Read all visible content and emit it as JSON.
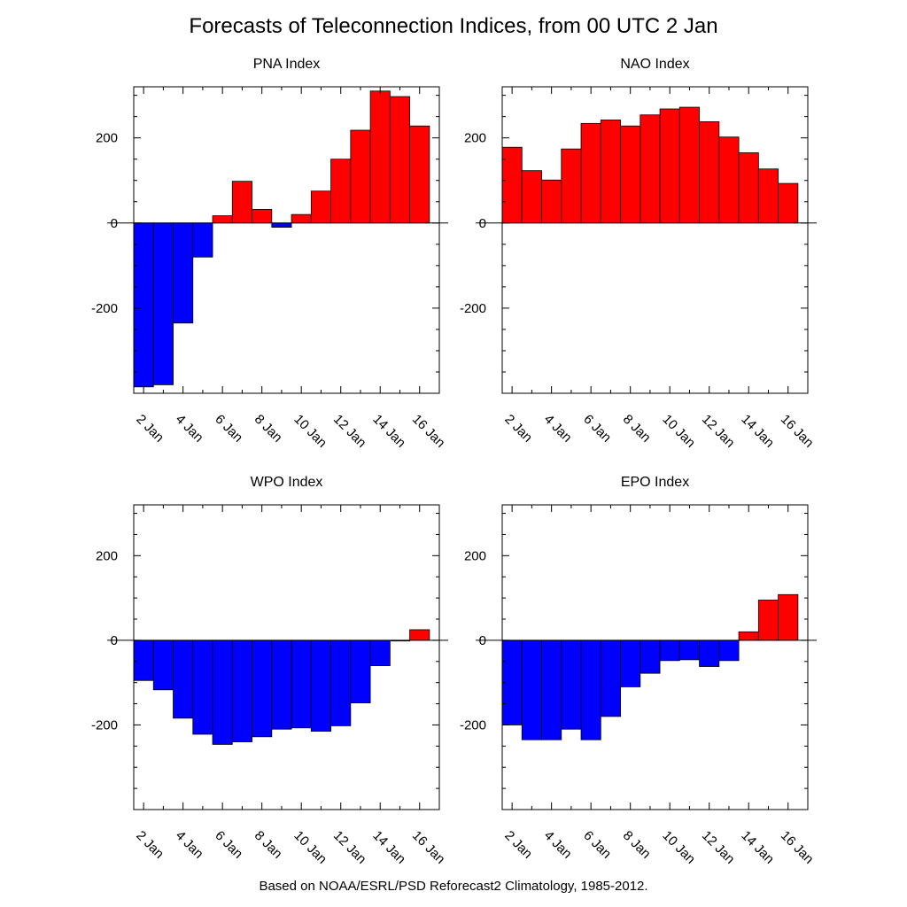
{
  "title": "Forecasts of Teleconnection Indices, from 00 UTC 2 Jan",
  "footer": "Based on NOAA/ESRL/PSD Reforecast2 Climatology, 1985-2012.",
  "colors": {
    "positive": "#ff0000",
    "negative": "#0000ff",
    "axis": "#000000"
  },
  "chart_data": [
    {
      "type": "bar",
      "title": "PNA Index",
      "x": [
        2,
        3,
        4,
        5,
        6,
        7,
        8,
        9,
        10,
        11,
        12,
        13,
        14,
        15,
        16
      ],
      "values": [
        -385,
        -380,
        -235,
        -80,
        17,
        98,
        32,
        -10,
        20,
        75,
        150,
        218,
        310,
        297,
        228
      ],
      "xticks": [
        "2 Jan",
        "4 Jan",
        "6 Jan",
        "8 Jan",
        "10 Jan",
        "12 Jan",
        "14 Jan",
        "16 Jan"
      ],
      "yticks": [
        "200",
        "0",
        "-200"
      ],
      "ylim": [
        -400,
        320
      ],
      "grid": false
    },
    {
      "type": "bar",
      "title": "NAO Index",
      "x": [
        2,
        3,
        4,
        5,
        6,
        7,
        8,
        9,
        10,
        11,
        12,
        13,
        14,
        15,
        16
      ],
      "values": [
        178,
        123,
        101,
        174,
        234,
        242,
        228,
        254,
        268,
        272,
        238,
        202,
        165,
        127,
        93
      ],
      "xticks": [
        "2 Jan",
        "4 Jan",
        "6 Jan",
        "8 Jan",
        "10 Jan",
        "12 Jan",
        "14 Jan",
        "16 Jan"
      ],
      "yticks": [
        "200",
        "0",
        "-200"
      ],
      "ylim": [
        -400,
        320
      ],
      "grid": false
    },
    {
      "type": "bar",
      "title": "WPO Index",
      "x": [
        2,
        3,
        4,
        5,
        6,
        7,
        8,
        9,
        10,
        11,
        12,
        13,
        14,
        15,
        16
      ],
      "values": [
        -95,
        -117,
        -184,
        -222,
        -246,
        -240,
        -228,
        -210,
        -207,
        -215,
        -202,
        -148,
        -60,
        0,
        25
      ],
      "xticks": [
        "2 Jan",
        "4 Jan",
        "6 Jan",
        "8 Jan",
        "10 Jan",
        "12 Jan",
        "14 Jan",
        "16 Jan"
      ],
      "yticks": [
        "200",
        "0",
        "-200"
      ],
      "ylim": [
        -400,
        320
      ],
      "grid": false
    },
    {
      "type": "bar",
      "title": "EPO Index",
      "x": [
        2,
        3,
        4,
        5,
        6,
        7,
        8,
        9,
        10,
        11,
        12,
        13,
        14,
        15,
        16
      ],
      "values": [
        -200,
        -235,
        -235,
        -210,
        -235,
        -180,
        -110,
        -78,
        -48,
        -46,
        -62,
        -48,
        20,
        95,
        108
      ],
      "xticks": [
        "2 Jan",
        "4 Jan",
        "6 Jan",
        "8 Jan",
        "10 Jan",
        "12 Jan",
        "14 Jan",
        "16 Jan"
      ],
      "yticks": [
        "200",
        "0",
        "-200"
      ],
      "ylim": [
        -400,
        320
      ],
      "grid": false
    }
  ]
}
